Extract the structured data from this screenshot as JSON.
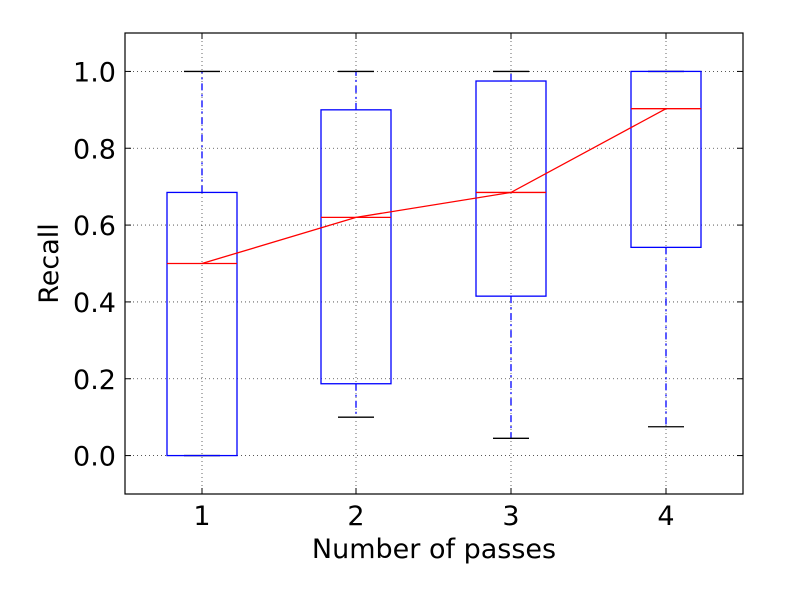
{
  "chart_data": {
    "type": "boxplot",
    "xlabel": "Number of passes",
    "ylabel": "Recall",
    "categories": [
      "1",
      "2",
      "3",
      "4"
    ],
    "ylim": [
      -0.1,
      1.1
    ],
    "y_ticks": [
      "0.0",
      "0.2",
      "0.4",
      "0.6",
      "0.8",
      "1.0"
    ],
    "y_tick_values": [
      0.0,
      0.2,
      0.4,
      0.6,
      0.8,
      1.0
    ],
    "grid": true,
    "legend": "none",
    "boxes": [
      {
        "category": "1",
        "min": 0.0,
        "q1": 0.0,
        "median": 0.5,
        "q3": 0.685,
        "max": 1.0
      },
      {
        "category": "2",
        "min": 0.1,
        "q1": 0.187,
        "median": 0.62,
        "q3": 0.9,
        "max": 1.0
      },
      {
        "category": "3",
        "min": 0.045,
        "q1": 0.415,
        "median": 0.685,
        "q3": 0.975,
        "max": 1.0
      },
      {
        "category": "4",
        "min": 0.075,
        "q1": 0.542,
        "median": 0.903,
        "q3": 1.0,
        "max": 1.0
      }
    ],
    "median_line": [
      0.5,
      0.62,
      0.685,
      0.903
    ],
    "colors": {
      "box": "#0000ff",
      "whisker": "#0000ff",
      "cap": "#000000",
      "median": "#ff0000",
      "trend": "#ff0000"
    }
  }
}
